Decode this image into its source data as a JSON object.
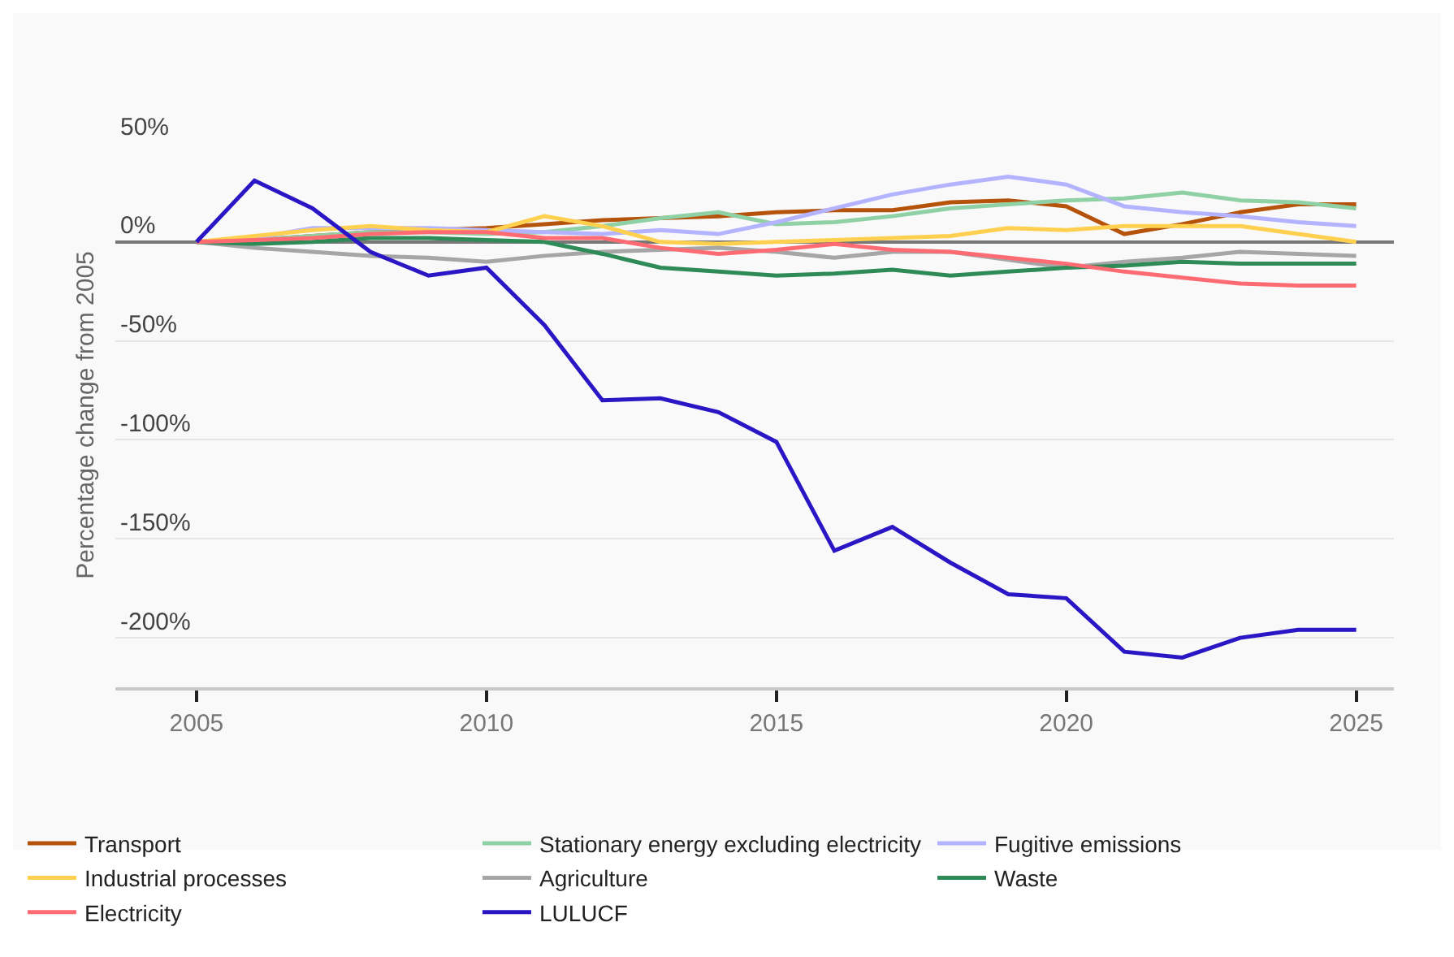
{
  "chart_data": {
    "type": "line",
    "ylabel": "Percentage change from 2005",
    "x": [
      2005,
      2006,
      2007,
      2008,
      2009,
      2010,
      2011,
      2012,
      2013,
      2014,
      2015,
      2016,
      2017,
      2018,
      2019,
      2020,
      2021,
      2022,
      2023,
      2024,
      2025
    ],
    "xlim": [
      2003.6,
      2025.65
    ],
    "xticks": [
      2005,
      2010,
      2015,
      2020,
      2025
    ],
    "ylim": [
      -225,
      50
    ],
    "yticks": [
      {
        "value": 50,
        "label": "50%"
      },
      {
        "value": 0,
        "label": "0%"
      },
      {
        "value": -50,
        "label": "-50%"
      },
      {
        "value": -100,
        "label": "-100%"
      },
      {
        "value": -150,
        "label": "-150%"
      },
      {
        "value": -200,
        "label": "-200%"
      }
    ],
    "grid": "y",
    "legend": "bottom",
    "marker": "none",
    "line_style": "solid",
    "series": [
      {
        "name": "Transport",
        "color": "#b5530b",
        "values": [
          0,
          1,
          3,
          5,
          6,
          7,
          9,
          11,
          12,
          13,
          15,
          16,
          16,
          20,
          21,
          18,
          4,
          9,
          15,
          19,
          19
        ]
      },
      {
        "name": "Stationary energy excluding electricity",
        "color": "#8fd1a4",
        "values": [
          0,
          1,
          3,
          5,
          5,
          4,
          5,
          8,
          12,
          15,
          9,
          10,
          13,
          17,
          19,
          21,
          22,
          25,
          21,
          20,
          17
        ]
      },
      {
        "name": "Fugitive emissions",
        "color": "#b3b3ff",
        "values": [
          0,
          2,
          7,
          7,
          7,
          6,
          5,
          4,
          6,
          4,
          10,
          17,
          24,
          29,
          33,
          29,
          18,
          15,
          13,
          10,
          8
        ]
      },
      {
        "name": "Industrial processes",
        "color": "#ffd050",
        "values": [
          0,
          3,
          6,
          8,
          6,
          5,
          13,
          8,
          0,
          -1,
          0,
          1,
          2,
          3,
          7,
          6,
          8,
          8,
          8,
          4,
          0
        ]
      },
      {
        "name": "Agriculture",
        "color": "#a6a6a6",
        "values": [
          0,
          -3,
          -5,
          -7,
          -8,
          -10,
          -7,
          -5,
          -4,
          -3,
          -5,
          -8,
          -5,
          -5,
          -9,
          -13,
          -10,
          -8,
          -5,
          -6,
          -7
        ]
      },
      {
        "name": "Waste",
        "color": "#2e8b57",
        "values": [
          0,
          -1,
          0,
          2,
          2,
          1,
          0,
          -6,
          -13,
          -15,
          -17,
          -16,
          -14,
          -17,
          -15,
          -13,
          -12,
          -10,
          -11,
          -11,
          -11
        ]
      },
      {
        "name": "Electricity",
        "color": "#ff6b72",
        "values": [
          0,
          1,
          2,
          4,
          5,
          5,
          2,
          2,
          -3,
          -6,
          -4,
          -1,
          -4,
          -5,
          -8,
          -11,
          -15,
          -18,
          -21,
          -22,
          -22
        ]
      },
      {
        "name": "LULUCF",
        "color": "#2a16c4",
        "values": [
          0,
          31,
          17,
          -5,
          -17,
          -13,
          -42,
          -80,
          -79,
          -86,
          -101,
          -156,
          -144,
          -162,
          -178,
          -180,
          -207,
          -210,
          -200,
          -196,
          -196
        ]
      }
    ]
  }
}
